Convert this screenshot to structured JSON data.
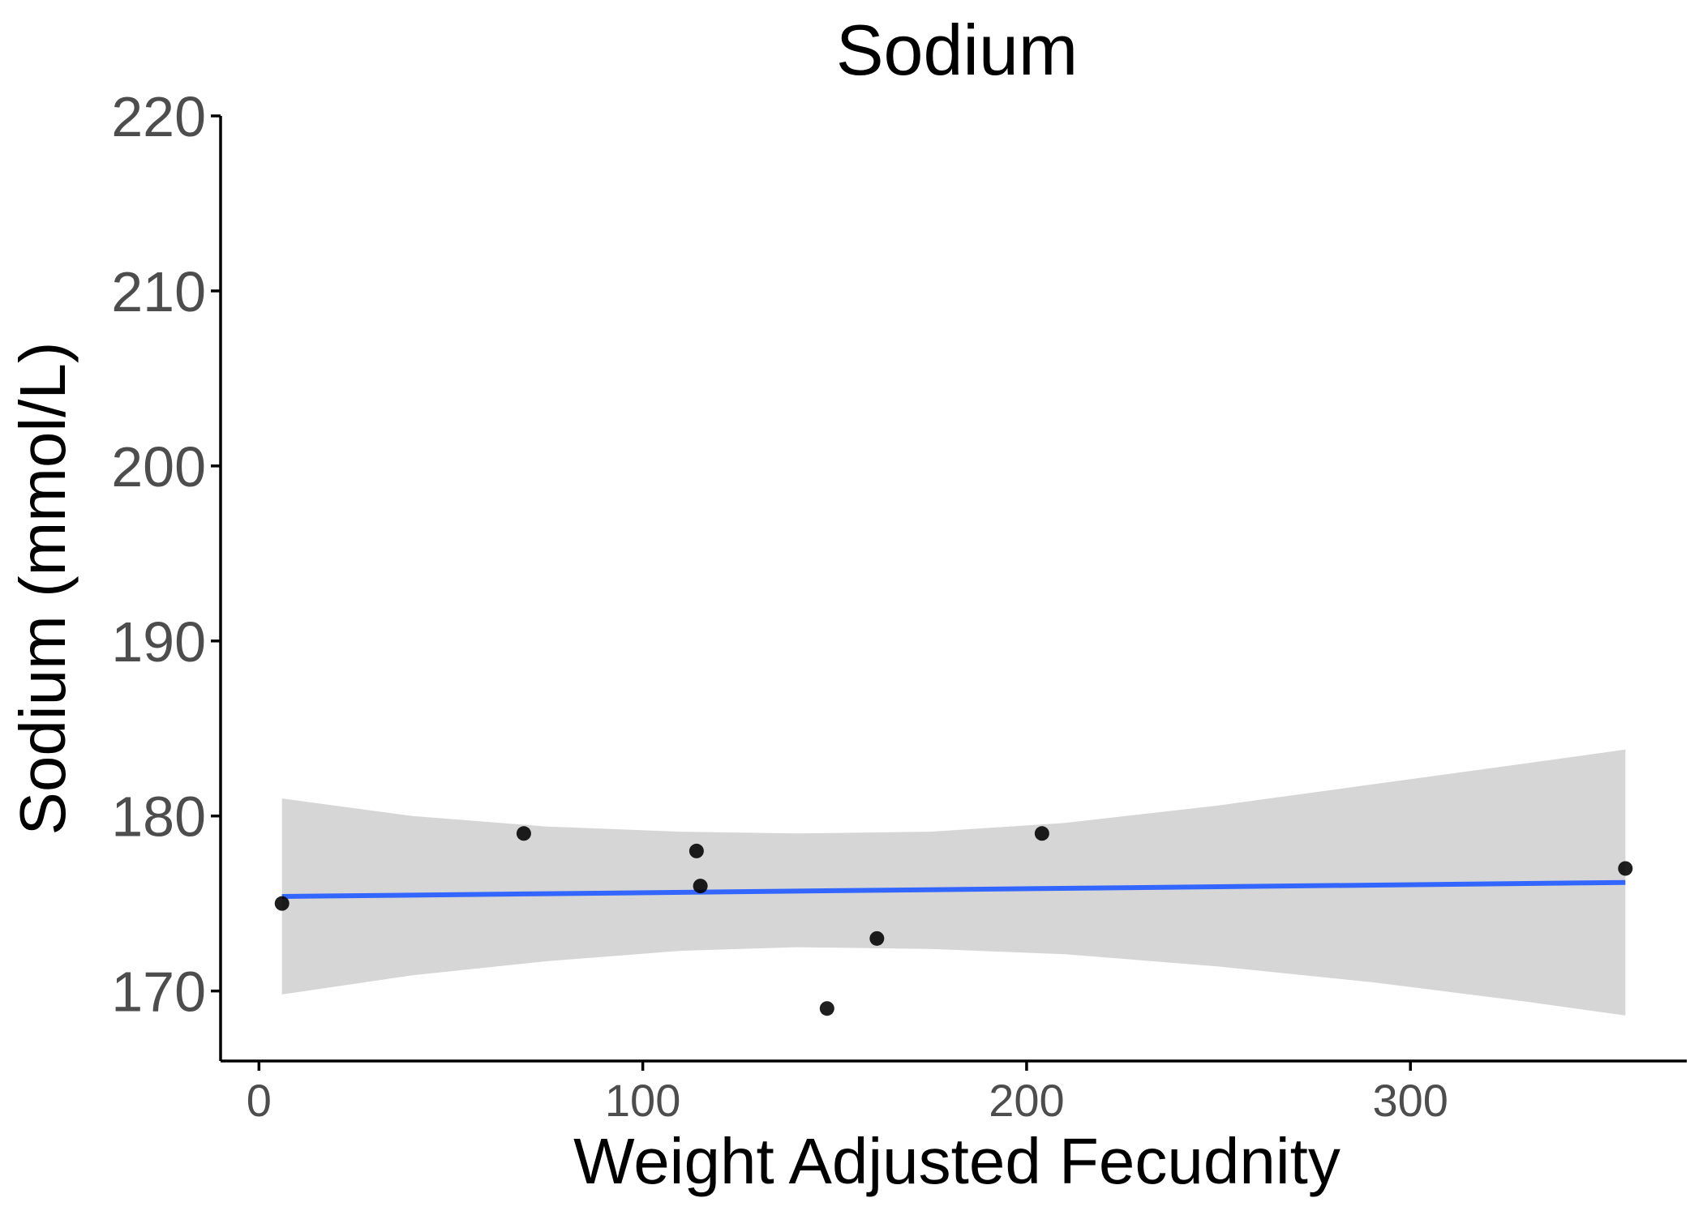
{
  "chart_data": {
    "type": "scatter",
    "title": "Sodium",
    "xlabel": "Weight Adjusted Fecudnity",
    "ylabel": "Sodium (mmol/L)",
    "xlim": [
      -10,
      372
    ],
    "ylim": [
      166,
      220
    ],
    "x_ticks": [
      0,
      100,
      200,
      300
    ],
    "x_tick_labels": [
      "0",
      "100",
      "200",
      "300"
    ],
    "y_ticks": [
      170,
      180,
      190,
      200,
      210,
      220
    ],
    "y_tick_labels": [
      "170",
      "180",
      "190",
      "200",
      "210",
      "220"
    ],
    "grid": false,
    "legend": "none",
    "points": [
      {
        "x": 6,
        "y": 175
      },
      {
        "x": 69,
        "y": 179
      },
      {
        "x": 114,
        "y": 178
      },
      {
        "x": 115,
        "y": 176
      },
      {
        "x": 148,
        "y": 169
      },
      {
        "x": 161,
        "y": 173
      },
      {
        "x": 204,
        "y": 179
      },
      {
        "x": 356,
        "y": 177
      }
    ],
    "trend_line": {
      "method": "linear",
      "x": [
        6,
        356
      ],
      "y": [
        175.4,
        176.2
      ]
    },
    "confidence_band": {
      "x": [
        6,
        40,
        75,
        110,
        140,
        175,
        210,
        250,
        290,
        330,
        356
      ],
      "lower": [
        169.8,
        170.9,
        171.7,
        172.3,
        172.5,
        172.4,
        172.1,
        171.4,
        170.5,
        169.4,
        168.6
      ],
      "upper": [
        181.0,
        180.0,
        179.4,
        179.1,
        179.0,
        179.1,
        179.6,
        180.6,
        181.8,
        183.0,
        183.8
      ]
    },
    "colors": {
      "points": "#000000",
      "trend_line": "#3366ff",
      "confidence_band": "#d6d6d6",
      "axis": "#000000",
      "tick_labels": "#4d4d4d"
    }
  }
}
